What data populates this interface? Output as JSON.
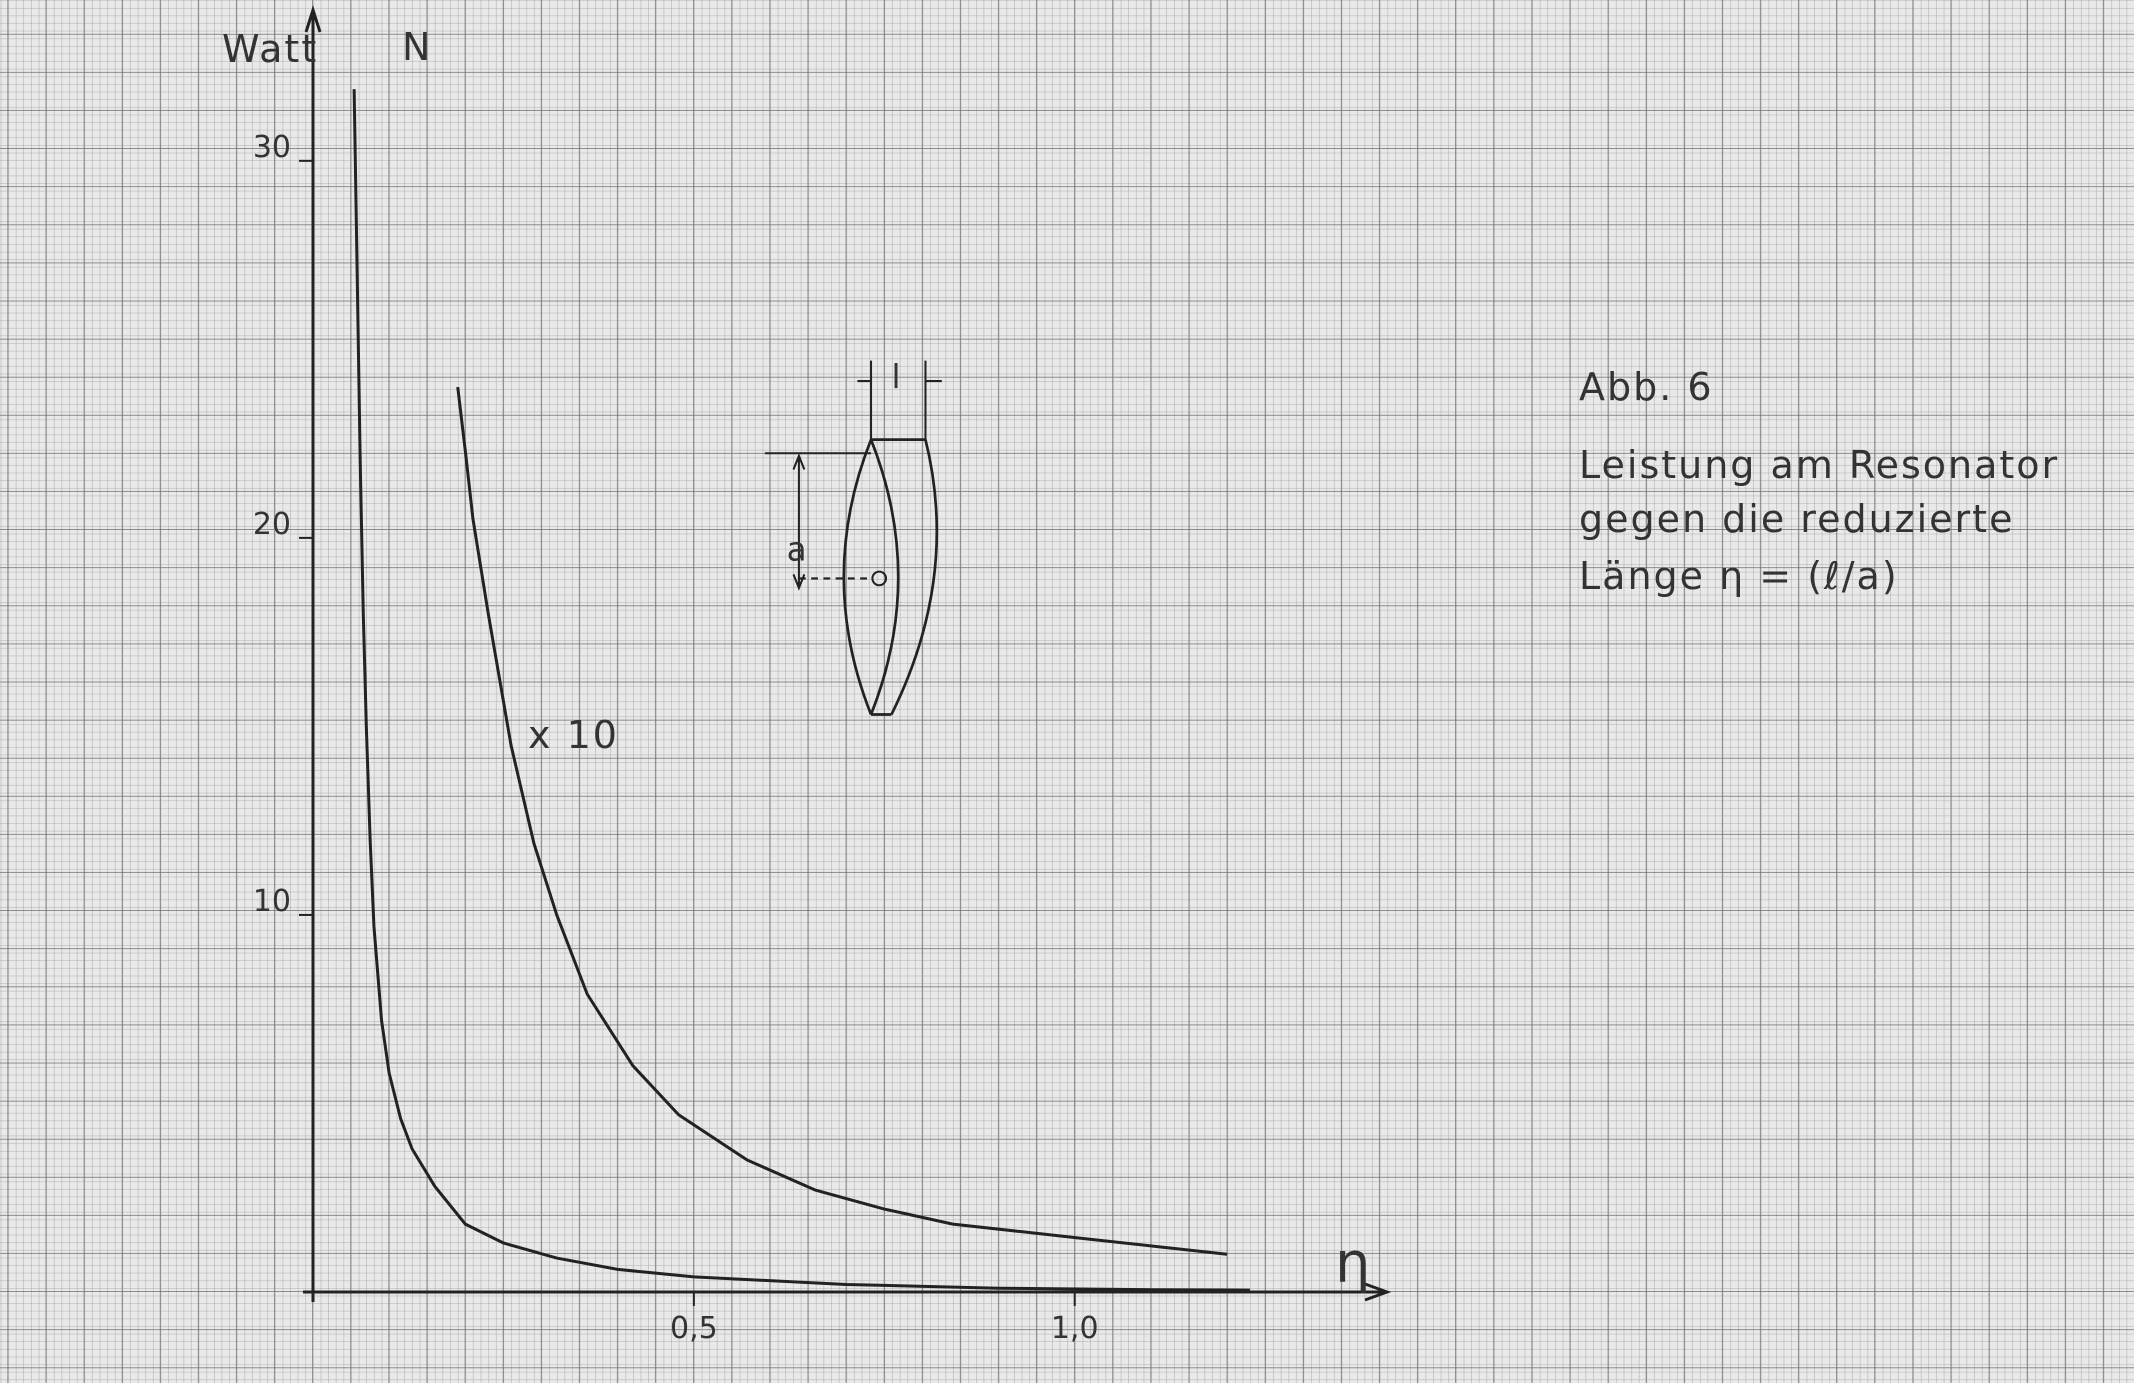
{
  "chart_data": {
    "type": "line",
    "x_label": "η",
    "y_label": "Watt",
    "y_symbol": "N",
    "annotation": "x 10",
    "figure_label": "Abb. 6",
    "caption": [
      "Leistung am Resonator",
      "gegen die reduzierte",
      "Länge  η = (ℓ/a)"
    ],
    "diagram_labels": [
      "l",
      "a"
    ],
    "xlim": [
      0,
      1.41
    ],
    "ylim": [
      0,
      34
    ],
    "xticks": [
      {
        "value": 0.5,
        "label": "0,5"
      },
      {
        "value": 1.0,
        "label": "1,0"
      }
    ],
    "yticks": [
      10,
      20,
      30
    ],
    "series": [
      {
        "color": "#222222",
        "x": [
          0.054,
          0.058,
          0.062,
          0.066,
          0.07,
          0.075,
          0.08,
          0.09,
          0.1,
          0.115,
          0.13,
          0.16,
          0.2,
          0.25,
          0.32,
          0.4,
          0.5,
          0.7,
          0.9,
          1.1,
          1.23
        ],
        "values": [
          31.9,
          27,
          22,
          18,
          15,
          12,
          9.7,
          7.2,
          5.8,
          4.6,
          3.8,
          2.8,
          1.8,
          1.3,
          0.9,
          0.6,
          0.4,
          0.2,
          0.1,
          0.06,
          0.05
        ]
      },
      {
        "color": "#222222",
        "x": [
          0.19,
          0.2,
          0.21,
          0.23,
          0.26,
          0.29,
          0.32,
          0.36,
          0.42,
          0.48,
          0.57,
          0.66,
          0.75,
          0.84,
          0.93,
          1.02,
          1.11,
          1.2
        ],
        "values": [
          24.0,
          22.3,
          20.5,
          18.0,
          14.5,
          11.9,
          10.0,
          7.9,
          6.0,
          4.7,
          3.5,
          2.7,
          2.2,
          1.8,
          1.6,
          1.4,
          1.2,
          1.0
        ]
      }
    ]
  }
}
